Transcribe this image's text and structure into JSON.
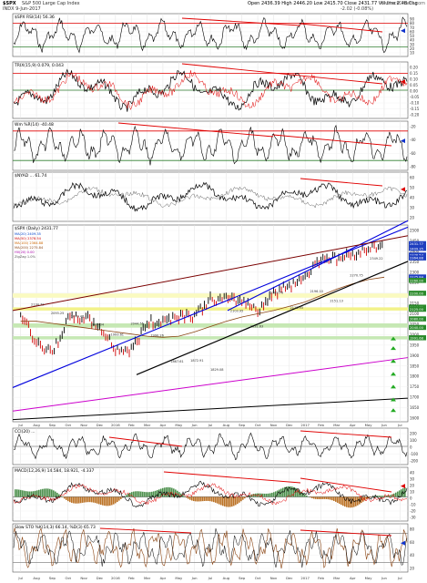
{
  "header": {
    "symbol": "$SPX",
    "name": "S&P 500 Large Cap Index",
    "exchange": "INDX",
    "date": "9-Jun-2017",
    "quote": "Open 2436.39   High 2446.20   Low 2415.70   Close 2431.77   Volume 2.4B   Chg",
    "change": "-2.02 (-0.08%)",
    "source": "© StockCharts.com"
  },
  "colors": {
    "price": "#000000",
    "bar_up": "#000000",
    "bar_down": "#d00000",
    "trend_red": "#e00000",
    "trend_blue": "#0000dd",
    "trend_black": "#000000",
    "magenta": "#cc00cc",
    "yellow_band": "#f2f28a",
    "green_band": "#c6e8b4",
    "arrow_green": "#22aa22",
    "arrow_red": "#dd0000",
    "arrow_blue": "#1133cc",
    "macd_hist": "#2e7d2e"
  },
  "panels": {
    "rsi": {
      "label": "$SPX RSI(14) 56.36",
      "ticks": [
        "90",
        "80",
        "70",
        "60",
        "50",
        "40",
        "30",
        "20",
        "10"
      ]
    },
    "trix": {
      "label": "TRIX(15,9) 0.079, 0.043",
      "ticks": [
        "0.20",
        "0.15",
        "0.10",
        "0.05",
        "0.00",
        "-0.05",
        "-0.10",
        "-0.15",
        "-0.20"
      ]
    },
    "williams": {
      "label": "Wm %R(14) -40.48",
      "ticks": [
        "-20",
        "-40",
        "-60",
        "-80"
      ]
    },
    "nyad": {
      "label": "$NYAD ... 61.74",
      "ticks": [
        "60",
        "50",
        "40",
        "30",
        "20"
      ]
    },
    "price": {
      "label": "$SPX (Daily) 2431.77",
      "ma_legend": [
        "MA(20) 2409.35",
        "MA(50) 2378.54",
        "MA(100) 2364.88",
        "MA(200) 2275.84",
        "HV(20) 0.00",
        "ZigZag 1.0%"
      ],
      "ticks": [
        "2500",
        "2450",
        "2400",
        "2350",
        "2300",
        "2250",
        "2200",
        "2150",
        "2100",
        "2050",
        "2000",
        "1950",
        "1900",
        "1850",
        "1800",
        "1750",
        "1700",
        "1650",
        "1600"
      ],
      "value_tags": [
        "2431.77",
        "2409.35",
        "2378.54",
        "2364.88",
        "2275.84",
        "2260.00",
        "2200.00",
        "2134.72",
        "2125.00",
        "2080.00",
        "2040.00",
        "1991.68"
      ],
      "annotations": [
        "2134.72",
        "2093.25",
        "2079.46",
        "2040.04",
        "1993.61",
        "2044.55",
        "1990.26",
        "1867.61",
        "1872.91",
        "1829.08",
        "2103.95",
        "2032.63",
        "2189.76",
        "2118.93",
        "2196.10",
        "2151.13",
        "2270.75",
        "2349.22"
      ]
    },
    "cci": {
      "label": "CCI(20) ...",
      "ticks": [
        "200",
        "100",
        "0",
        "-100",
        "-200"
      ]
    },
    "macd": {
      "label": "MACD(12,26,9) 14.584, 18.921, -4.337",
      "ticks": [
        "40",
        "30",
        "20",
        "10",
        "0",
        "-10",
        "-20",
        "-30"
      ]
    },
    "sto": {
      "label": "Slow STO %K(14,3) 66.14, %D(3) 65.73",
      "ticks": [
        "80",
        "60",
        "40",
        "20"
      ]
    }
  },
  "x_axis": {
    "top": [
      "Jul",
      "Aug",
      "Sep",
      "Oct",
      "Nov",
      "Dec",
      "2016",
      "Feb",
      "Mar",
      "Apr",
      "May",
      "Jun",
      "Jul",
      "Aug",
      "Sep",
      "Oct",
      "Nov",
      "Dec",
      "2017",
      "Feb",
      "Mar",
      "Apr",
      "May",
      "Jun",
      "Jul"
    ],
    "bottom": [
      "Jul",
      "Aug",
      "Sep",
      "Oct",
      "Nov",
      "Dec",
      "2016",
      "Feb",
      "Mar",
      "Apr",
      "May",
      "Jun",
      "Jul",
      "Aug",
      "Sep",
      "Oct",
      "Nov",
      "Dec",
      "2017",
      "Feb",
      "Mar",
      "Apr",
      "May",
      "Jun",
      "Jul"
    ]
  },
  "chart_data": {
    "type": "line",
    "title": "$SPX S&P 500 Large Cap Index",
    "x": [
      "2015-07",
      "2015-08",
      "2015-09",
      "2015-10",
      "2015-11",
      "2015-12",
      "2016-01",
      "2016-02",
      "2016-03",
      "2016-04",
      "2016-05",
      "2016-06",
      "2016-07",
      "2016-08",
      "2016-09",
      "2016-10",
      "2016-11",
      "2016-12",
      "2017-01",
      "2017-02",
      "2017-03",
      "2017-04",
      "2017-05",
      "2017-06"
    ],
    "series": [
      {
        "name": "$SPX",
        "values": [
          2100,
          1972,
          1920,
          2080,
          2090,
          2044,
          1940,
          1932,
          2060,
          2070,
          2096,
          2099,
          2170,
          2170,
          2168,
          2126,
          2198,
          2239,
          2279,
          2364,
          2363,
          2384,
          2412,
          2431
        ]
      },
      {
        "name": "MA(200)",
        "values": [
          2070,
          2070,
          2060,
          2050,
          2040,
          2030,
          2020,
          2010,
          2000,
          1995,
          2000,
          2020,
          2045,
          2070,
          2090,
          2105,
          2120,
          2140,
          2160,
          2190,
          2220,
          2245,
          2265,
          2276
        ]
      }
    ],
    "ylim": [
      1600,
      2520
    ],
    "xlabel": "",
    "ylabel": ""
  }
}
